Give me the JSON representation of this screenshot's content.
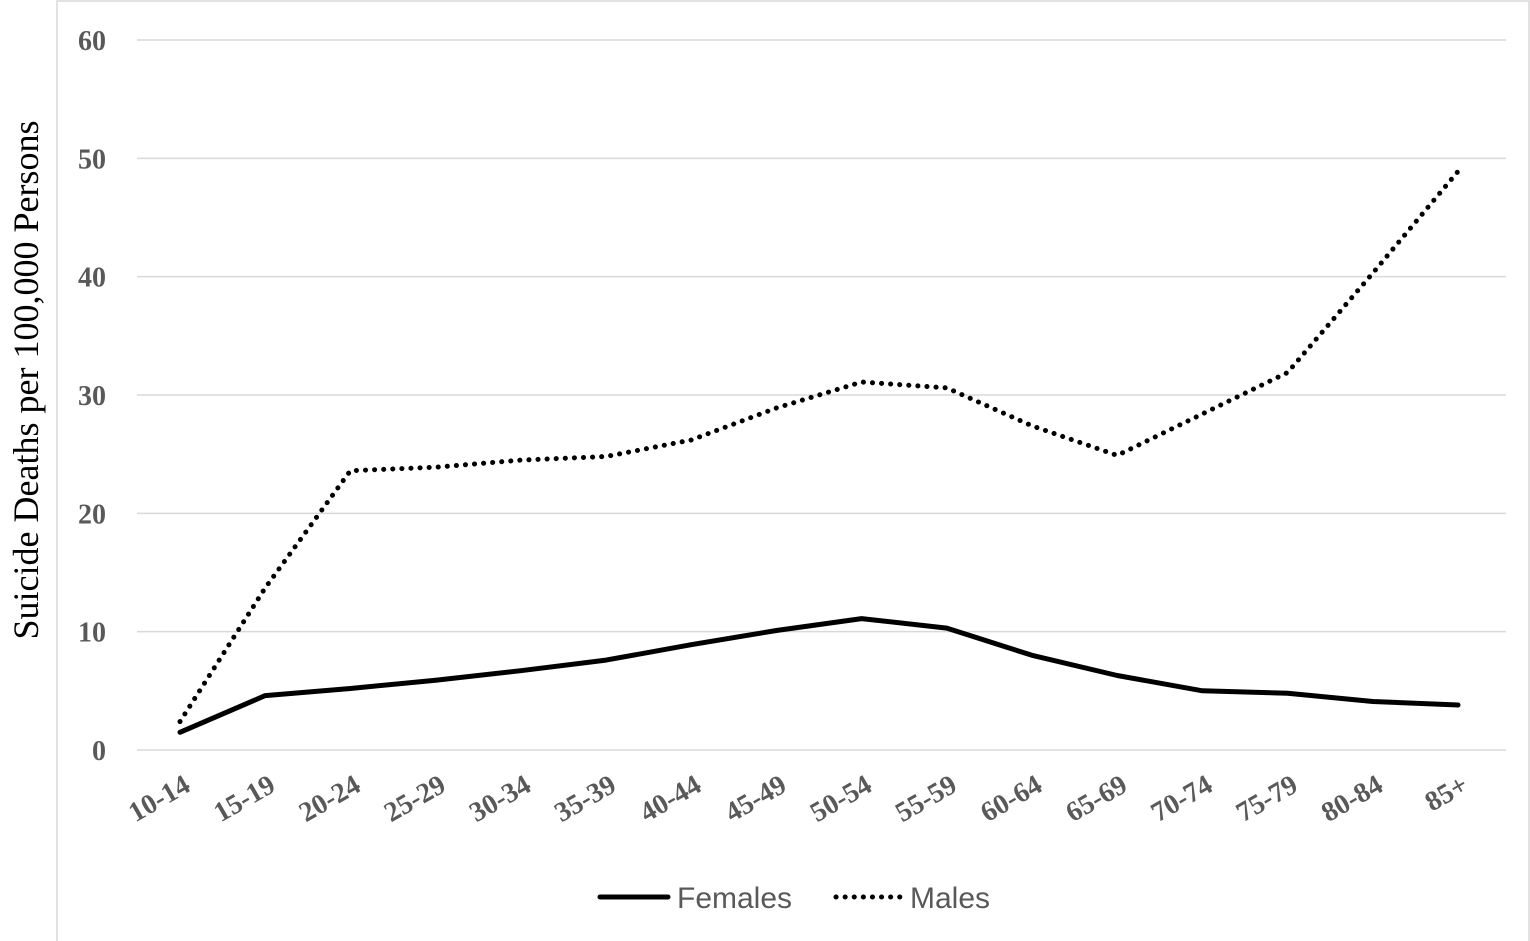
{
  "chart_data": {
    "type": "line",
    "title": "",
    "xlabel": "",
    "ylabel": "Suicide Deaths per 100,000 Persons",
    "ylim": [
      0,
      60
    ],
    "yticks": [
      "0",
      "10",
      "20",
      "30",
      "40",
      "50",
      "60"
    ],
    "grid": true,
    "legend_position": "bottom",
    "categories": [
      "10-14",
      "15-19",
      "20-24",
      "25-29",
      "30-34",
      "35-39",
      "40-44",
      "45-49",
      "50-54",
      "55-59",
      "60-64",
      "65-69",
      "70-74",
      "75-79",
      "80-84",
      "85+"
    ],
    "series": [
      {
        "name": "Females",
        "style": "solid",
        "color": "#000000",
        "values": [
          1.5,
          4.6,
          5.2,
          5.9,
          6.7,
          7.6,
          8.9,
          10.1,
          11.1,
          10.3,
          8.0,
          6.3,
          5.0,
          4.8,
          4.1,
          3.8
        ]
      },
      {
        "name": "Males",
        "style": "dotted",
        "color": "#000000",
        "values": [
          2.4,
          13.7,
          23.6,
          23.9,
          24.5,
          24.8,
          26.2,
          28.9,
          31.1,
          30.6,
          27.4,
          24.9,
          28.4,
          31.9,
          40.3,
          48.9
        ]
      }
    ]
  }
}
